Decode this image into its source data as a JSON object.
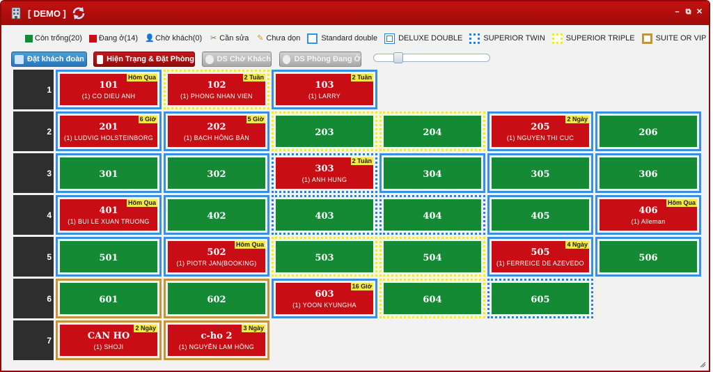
{
  "window": {
    "title": "[ DEMO ]"
  },
  "legend": [
    {
      "kind": "swatch",
      "color": "#138a33",
      "label": "Còn trống",
      "count": "(20)",
      "name": "legend-available"
    },
    {
      "kind": "swatch",
      "color": "#c90d14",
      "label": "Đang ở",
      "count": "(14)",
      "name": "legend-occupied"
    },
    {
      "kind": "icon",
      "icon": "person-icon",
      "label": "Chờ khách",
      "count": "(0)",
      "name": "legend-waiting"
    },
    {
      "kind": "icon",
      "icon": "tools-icon",
      "label": "Cần sửa",
      "count": "",
      "name": "legend-repair"
    },
    {
      "kind": "icon",
      "icon": "broom-icon",
      "label": "Chưa dọn",
      "count": "",
      "name": "legend-dirty"
    },
    {
      "kind": "box",
      "style": "std",
      "label": "Standard double",
      "count": "",
      "name": "legend-standard-double"
    },
    {
      "kind": "box",
      "style": "deluxe",
      "label": "DELUXE DOUBLE",
      "count": "",
      "name": "legend-deluxe-double"
    },
    {
      "kind": "box",
      "style": "twin",
      "label": "SUPERIOR TWIN",
      "count": "",
      "name": "legend-superior-twin"
    },
    {
      "kind": "box",
      "style": "triple",
      "label": "SUPERIOR TRIPLE",
      "count": "",
      "name": "legend-superior-triple"
    },
    {
      "kind": "box",
      "style": "vip",
      "label": "SUITE OR VIP",
      "count": "",
      "name": "legend-suite-vip"
    }
  ],
  "toolbar": {
    "group_booking": "Đặt khách đoàn",
    "status_booking": "Hiện Trạng & Đặt Phòng",
    "waiting_list": "DS Chờ Khách",
    "occupied_list": "DS Phòng Đang Ở"
  },
  "colors": {
    "occupied": "#c90d14",
    "available": "#138a33",
    "tag": "#f5e64a",
    "titlebar": "#b00e0c"
  },
  "floors": [
    {
      "label": "1",
      "rooms": [
        {
          "num": "101",
          "status": "occ",
          "type": "std",
          "guest": "(1) CO DIEU ANH",
          "tag": "Hôm Qua"
        },
        {
          "num": "102",
          "status": "occ",
          "type": "triple",
          "guest": "(1) PHONG NHAN VIEN",
          "tag": "2 Tuần"
        },
        {
          "num": "103",
          "status": "occ",
          "type": "std",
          "guest": "(1) LARRY",
          "tag": "2 Tuần"
        }
      ]
    },
    {
      "label": "2",
      "rooms": [
        {
          "num": "201",
          "status": "occ",
          "type": "std",
          "guest": "(1) LUDVIG HOLSTEINBORG",
          "tag": "6 Giờ"
        },
        {
          "num": "202",
          "status": "occ",
          "type": "std",
          "guest": "(1) BẠCH HỒNG BÂN",
          "tag": "5 Giờ"
        },
        {
          "num": "203",
          "status": "free",
          "type": "triple",
          "guest": "",
          "tag": ""
        },
        {
          "num": "204",
          "status": "free",
          "type": "triple",
          "guest": "",
          "tag": ""
        },
        {
          "num": "205",
          "status": "occ",
          "type": "std",
          "guest": "(1) NGUYEN THI CUC",
          "tag": "2 Ngày"
        },
        {
          "num": "206",
          "status": "free",
          "type": "std",
          "guest": "",
          "tag": ""
        }
      ]
    },
    {
      "label": "3",
      "rooms": [
        {
          "num": "301",
          "status": "free",
          "type": "std",
          "guest": "",
          "tag": ""
        },
        {
          "num": "302",
          "status": "free",
          "type": "std",
          "guest": "",
          "tag": ""
        },
        {
          "num": "303",
          "status": "occ",
          "type": "twin",
          "guest": "(1) ANH HUNG",
          "tag": "2 Tuần"
        },
        {
          "num": "304",
          "status": "free",
          "type": "std",
          "guest": "",
          "tag": ""
        },
        {
          "num": "305",
          "status": "free",
          "type": "std",
          "guest": "",
          "tag": ""
        },
        {
          "num": "306",
          "status": "free",
          "type": "std",
          "guest": "",
          "tag": ""
        }
      ]
    },
    {
      "label": "4",
      "rooms": [
        {
          "num": "401",
          "status": "occ",
          "type": "std",
          "guest": "(1) BUI LE XUAN TRUONG",
          "tag": "Hôm Qua"
        },
        {
          "num": "402",
          "status": "free",
          "type": "std",
          "guest": "",
          "tag": ""
        },
        {
          "num": "403",
          "status": "free",
          "type": "twin",
          "guest": "",
          "tag": ""
        },
        {
          "num": "404",
          "status": "free",
          "type": "twin",
          "guest": "",
          "tag": ""
        },
        {
          "num": "405",
          "status": "free",
          "type": "std",
          "guest": "",
          "tag": ""
        },
        {
          "num": "406",
          "status": "occ",
          "type": "std",
          "guest": "(1) Alleman",
          "tag": "Hôm Qua"
        }
      ]
    },
    {
      "label": "5",
      "rooms": [
        {
          "num": "501",
          "status": "free",
          "type": "std",
          "guest": "",
          "tag": ""
        },
        {
          "num": "502",
          "status": "occ",
          "type": "std",
          "guest": "(1) PIOTR JAN(BOOKING)",
          "tag": "Hôm Qua"
        },
        {
          "num": "503",
          "status": "free",
          "type": "triple",
          "guest": "",
          "tag": ""
        },
        {
          "num": "504",
          "status": "free",
          "type": "triple",
          "guest": "",
          "tag": ""
        },
        {
          "num": "505",
          "status": "occ",
          "type": "std",
          "guest": "(1) FERREICE DE AZEVEDO",
          "tag": "4 Ngày"
        },
        {
          "num": "506",
          "status": "free",
          "type": "std",
          "guest": "",
          "tag": ""
        }
      ]
    },
    {
      "label": "6",
      "rooms": [
        {
          "num": "601",
          "status": "free",
          "type": "vip",
          "guest": "",
          "tag": ""
        },
        {
          "num": "602",
          "status": "free",
          "type": "vip",
          "guest": "",
          "tag": ""
        },
        {
          "num": "603",
          "status": "occ",
          "type": "std",
          "guest": "(1) YOON KYUNGHA",
          "tag": "16 Giờ"
        },
        {
          "num": "604",
          "status": "free",
          "type": "triple",
          "guest": "",
          "tag": ""
        },
        {
          "num": "605",
          "status": "free",
          "type": "twin",
          "guest": "",
          "tag": ""
        }
      ]
    },
    {
      "label": "7",
      "rooms": [
        {
          "num": "CAN HO",
          "status": "occ",
          "type": "vip",
          "guest": "(1) SHOJI",
          "tag": "2 Ngày"
        },
        {
          "num": "c-ho 2",
          "status": "occ",
          "type": "vip",
          "guest": "(1) NGUYỄN LAM HỒNG",
          "tag": "3 Ngày"
        }
      ]
    }
  ]
}
